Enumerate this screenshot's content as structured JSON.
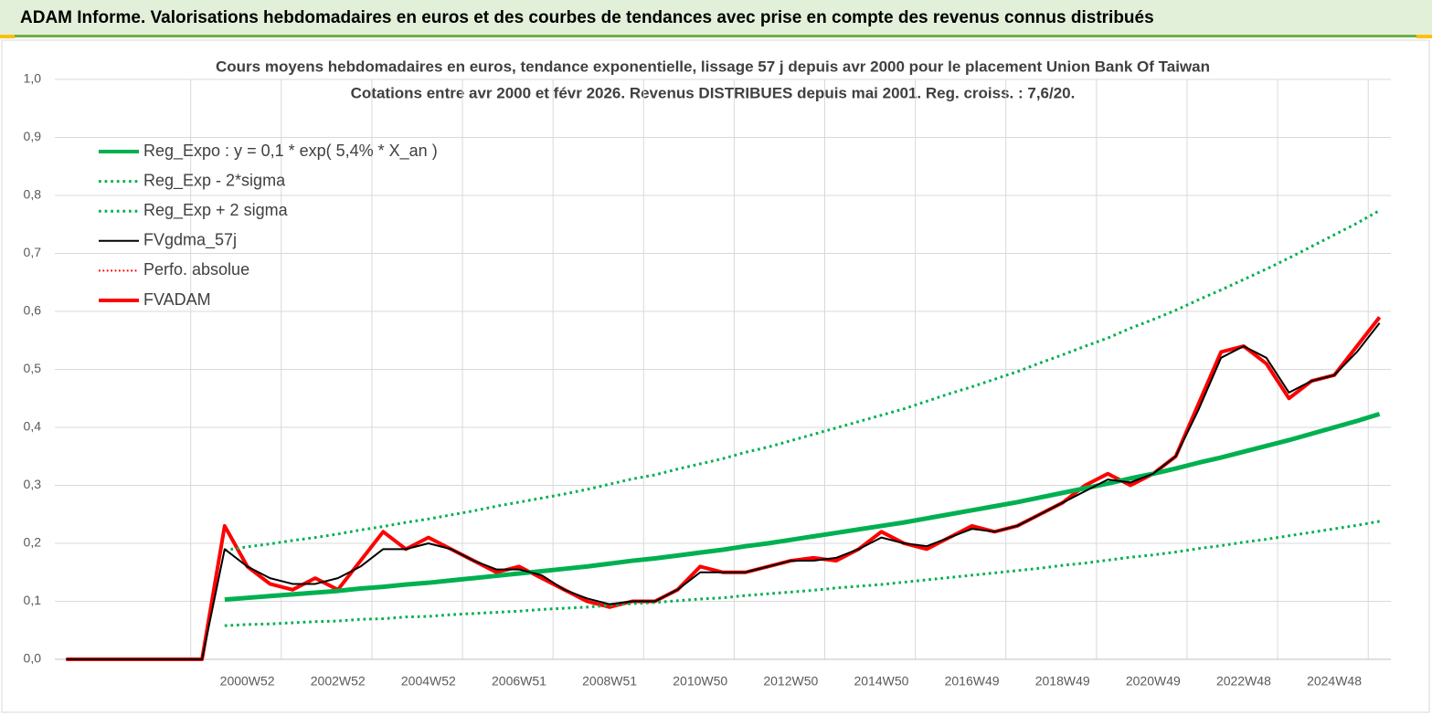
{
  "header": {
    "title": "ADAM Informe. Valorisations hebdomadaires en euros et des courbes de tendances avec prise en compte des revenus connus distribués"
  },
  "chart_data": {
    "type": "line",
    "title": "Cours moyens hebdomadaires en euros, tendance exponentielle, lissage 57 j depuis avr 2000 pour le placement Union Bank Of Taiwan",
    "subtitle": "Cotations entre avr 2000 et févr 2026. Revenus DISTRIBUES depuis mai 2001. Reg. croiss. : 7,6/20.",
    "categories": [
      null,
      null,
      null,
      null,
      null,
      null,
      null,
      null,
      "2000W52",
      null,
      null,
      null,
      "2002W52",
      null,
      null,
      null,
      "2004W52",
      null,
      null,
      null,
      "2006W51",
      null,
      null,
      null,
      "2008W51",
      null,
      null,
      null,
      "2010W50",
      null,
      null,
      null,
      "2012W50",
      null,
      null,
      null,
      "2014W50",
      null,
      null,
      null,
      "2016W49",
      null,
      null,
      null,
      "2018W49",
      null,
      null,
      null,
      "2020W49",
      null,
      null,
      null,
      "2022W48",
      null,
      null,
      null,
      "2024W48",
      null,
      null
    ],
    "ylim": [
      0,
      1
    ],
    "yticks": [
      {
        "value": 0,
        "label": "0,0"
      },
      {
        "value": 0.1,
        "label": "0,1"
      },
      {
        "value": 0.2,
        "label": "0,2"
      },
      {
        "value": 0.3,
        "label": "0,3"
      },
      {
        "value": 0.4,
        "label": "0,4"
      },
      {
        "value": 0.5,
        "label": "0,5"
      },
      {
        "value": 0.6,
        "label": "0,6"
      },
      {
        "value": 0.7,
        "label": "0,7"
      },
      {
        "value": 0.8,
        "label": "0,8"
      },
      {
        "value": 0.9,
        "label": "0,9"
      },
      {
        "value": 1,
        "label": "1,0"
      }
    ],
    "grid": true,
    "legend": "upper left",
    "series": [
      {
        "name": "Reg_Expo : y = 0,1 * exp( 5,4% *  X_an )",
        "color": "#00b050",
        "style": "solid",
        "width": 5,
        "values": [
          null,
          null,
          null,
          null,
          null,
          null,
          null,
          0.103,
          0.106,
          0.109,
          0.112,
          0.115,
          0.118,
          0.122,
          0.125,
          0.129,
          0.132,
          0.136,
          0.14,
          0.144,
          0.148,
          0.152,
          0.156,
          0.16,
          0.165,
          0.17,
          0.174,
          0.179,
          0.184,
          0.189,
          0.195,
          0.2,
          0.206,
          0.212,
          0.218,
          0.224,
          0.23,
          0.236,
          0.243,
          0.25,
          0.257,
          0.264,
          0.271,
          0.279,
          0.287,
          0.295,
          0.303,
          0.312,
          0.32,
          0.329,
          0.339,
          0.348,
          0.358,
          0.368,
          0.378,
          0.389,
          0.4,
          0.411,
          0.423
        ]
      },
      {
        "name": "Reg_Exp - 2*sigma",
        "color": "#00b050",
        "style": "dotted",
        "width": 3,
        "values": [
          null,
          null,
          null,
          null,
          null,
          null,
          null,
          0.058,
          0.06,
          0.061,
          0.063,
          0.065,
          0.066,
          0.069,
          0.07,
          0.073,
          0.074,
          0.077,
          0.079,
          0.081,
          0.083,
          0.086,
          0.088,
          0.09,
          0.093,
          0.096,
          0.098,
          0.101,
          0.104,
          0.106,
          0.11,
          0.113,
          0.116,
          0.119,
          0.123,
          0.126,
          0.129,
          0.133,
          0.137,
          0.141,
          0.145,
          0.149,
          0.153,
          0.157,
          0.162,
          0.166,
          0.171,
          0.176,
          0.18,
          0.185,
          0.191,
          0.196,
          0.202,
          0.207,
          0.213,
          0.219,
          0.225,
          0.231,
          0.238
        ]
      },
      {
        "name": "Reg_Exp + 2 sigma",
        "color": "#00b050",
        "style": "dotted",
        "width": 3,
        "values": [
          null,
          null,
          null,
          null,
          null,
          null,
          null,
          0.188,
          0.194,
          0.199,
          0.205,
          0.21,
          0.216,
          0.223,
          0.229,
          0.236,
          0.242,
          0.249,
          0.256,
          0.264,
          0.271,
          0.278,
          0.285,
          0.293,
          0.302,
          0.311,
          0.318,
          0.328,
          0.337,
          0.346,
          0.357,
          0.366,
          0.377,
          0.388,
          0.399,
          0.41,
          0.421,
          0.432,
          0.445,
          0.458,
          0.47,
          0.483,
          0.496,
          0.511,
          0.525,
          0.54,
          0.554,
          0.571,
          0.586,
          0.602,
          0.62,
          0.637,
          0.655,
          0.673,
          0.692,
          0.712,
          0.732,
          0.752,
          0.774
        ]
      },
      {
        "name": "FVgdma_57j",
        "color": "#000000",
        "style": "solid",
        "width": 2,
        "values": [
          0,
          0,
          0,
          0,
          0,
          0,
          0,
          0.19,
          0.16,
          0.14,
          0.13,
          0.13,
          0.14,
          0.16,
          0.19,
          0.19,
          0.2,
          0.19,
          0.17,
          0.155,
          0.155,
          0.145,
          0.12,
          0.105,
          0.095,
          0.1,
          0.1,
          0.12,
          0.15,
          0.15,
          0.15,
          0.16,
          0.17,
          0.17,
          0.175,
          0.19,
          0.21,
          0.2,
          0.195,
          0.21,
          0.225,
          0.22,
          0.23,
          0.25,
          0.27,
          0.29,
          0.31,
          0.305,
          0.32,
          0.35,
          0.43,
          0.52,
          0.54,
          0.52,
          0.46,
          0.48,
          0.49,
          0.53,
          0.58
        ]
      },
      {
        "name": "Perfo. absolue",
        "color": "#ff0000",
        "style": "dotted",
        "width": 2,
        "values": [
          0,
          0,
          0,
          0,
          0,
          0,
          0,
          0.23,
          0.16,
          0.13,
          0.12,
          0.14,
          0.12,
          0.17,
          0.22,
          0.19,
          0.21,
          0.19,
          0.17,
          0.15,
          0.16,
          0.14,
          0.12,
          0.1,
          0.09,
          0.1,
          0.1,
          0.12,
          0.16,
          0.15,
          0.15,
          0.16,
          0.17,
          0.175,
          0.17,
          0.19,
          0.22,
          0.2,
          0.19,
          0.21,
          0.23,
          0.22,
          0.23,
          0.25,
          0.27,
          0.3,
          0.32,
          0.3,
          0.32,
          0.35,
          0.44,
          0.53,
          0.54,
          0.51,
          0.45,
          0.48,
          0.49,
          0.54,
          0.59
        ]
      },
      {
        "name": "FVADAM",
        "color": "#ff0000",
        "style": "solid",
        "width": 4,
        "values": [
          0,
          0,
          0,
          0,
          0,
          0,
          0,
          0.23,
          0.16,
          0.13,
          0.12,
          0.14,
          0.12,
          0.17,
          0.22,
          0.19,
          0.21,
          0.19,
          0.17,
          0.15,
          0.16,
          0.14,
          0.12,
          0.1,
          0.09,
          0.1,
          0.1,
          0.12,
          0.16,
          0.15,
          0.15,
          0.16,
          0.17,
          0.175,
          0.17,
          0.19,
          0.22,
          0.2,
          0.19,
          0.21,
          0.23,
          0.22,
          0.23,
          0.25,
          0.27,
          0.3,
          0.32,
          0.3,
          0.32,
          0.35,
          0.44,
          0.53,
          0.54,
          0.51,
          0.45,
          0.48,
          0.49,
          0.54,
          0.59
        ]
      }
    ]
  }
}
